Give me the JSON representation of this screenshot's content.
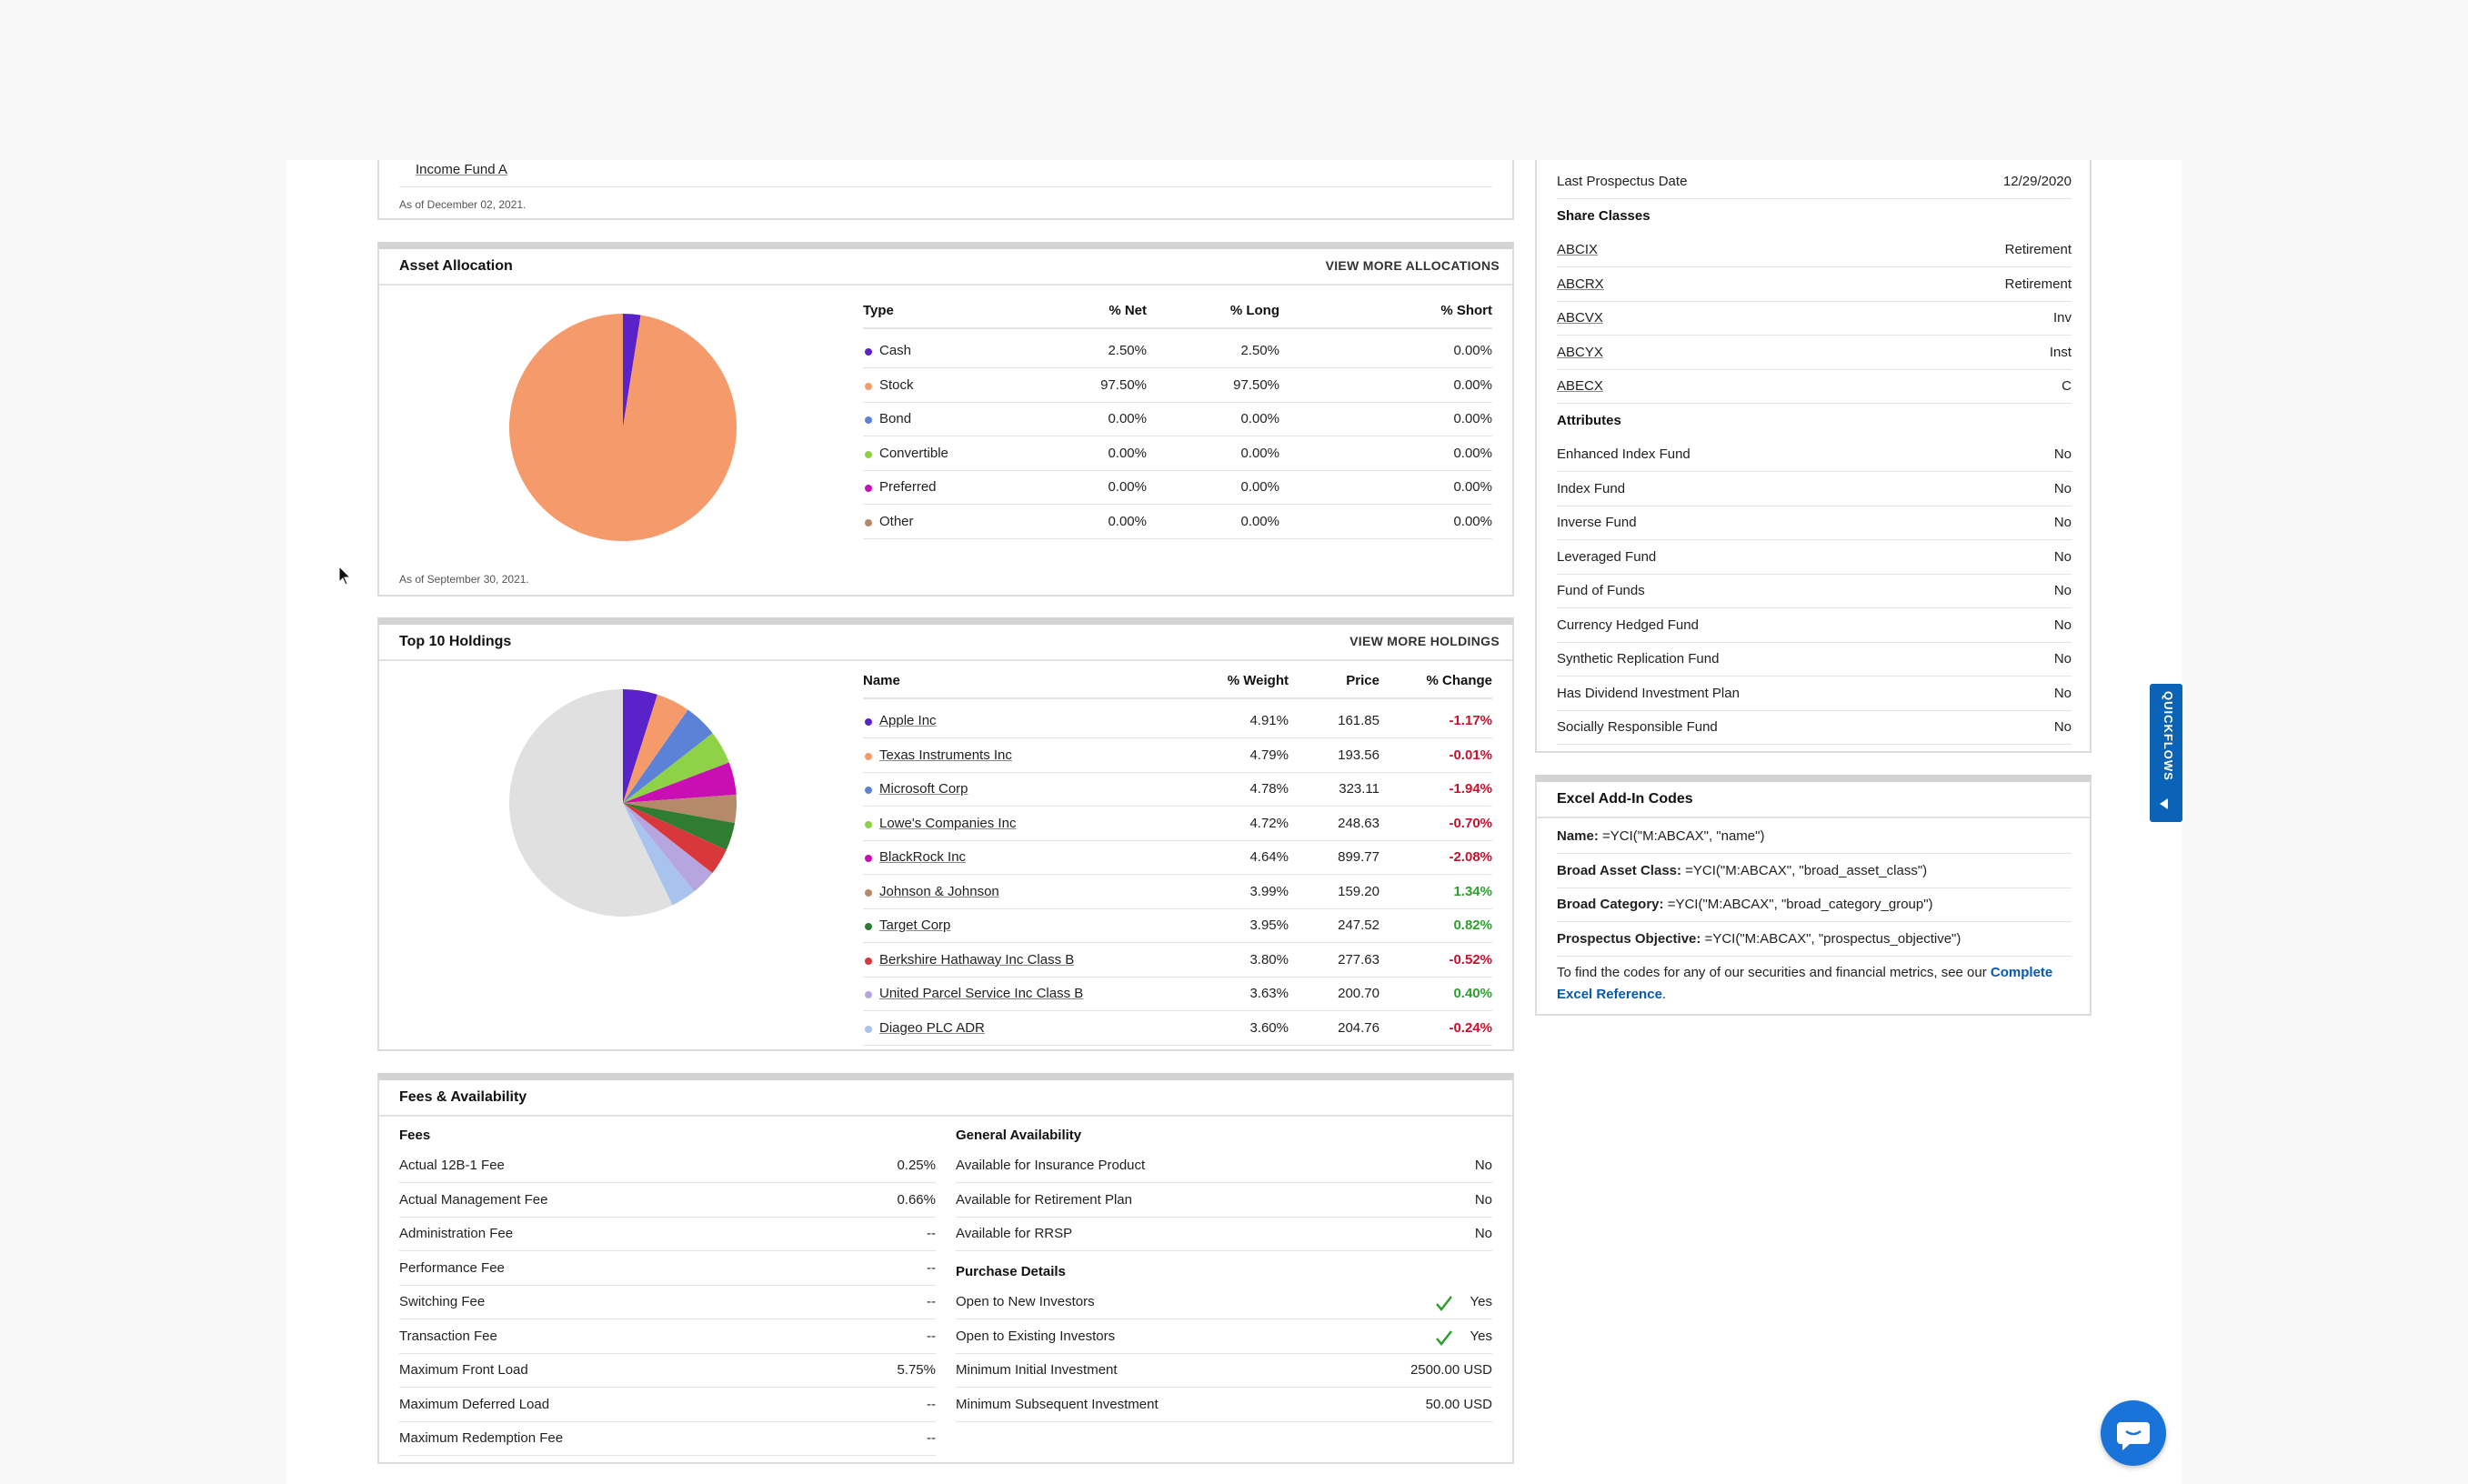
{
  "income_fund": {
    "name": "Income Fund A",
    "as_of": "As of December 02, 2021."
  },
  "asset_allocation": {
    "title": "Asset Allocation",
    "link": "VIEW MORE ALLOCATIONS",
    "as_of": "As of September 30, 2021.",
    "headers": [
      "Type",
      "% Net",
      "% Long",
      "% Short"
    ],
    "rows": [
      {
        "type": "Cash",
        "net": "2.50%",
        "long": "2.50%",
        "short": "0.00%",
        "color": "#5a22c9"
      },
      {
        "type": "Stock",
        "net": "97.50%",
        "long": "97.50%",
        "short": "0.00%",
        "color": "#f59a6a"
      },
      {
        "type": "Bond",
        "net": "0.00%",
        "long": "0.00%",
        "short": "0.00%",
        "color": "#5b82d6"
      },
      {
        "type": "Convertible",
        "net": "0.00%",
        "long": "0.00%",
        "short": "0.00%",
        "color": "#8fd147"
      },
      {
        "type": "Preferred",
        "net": "0.00%",
        "long": "0.00%",
        "short": "0.00%",
        "color": "#c90fb4"
      },
      {
        "type": "Other",
        "net": "0.00%",
        "long": "0.00%",
        "short": "0.00%",
        "color": "#b58a6a"
      }
    ],
    "pie": [
      {
        "label": "Cash",
        "value": 2.5,
        "color": "#5a22c9"
      },
      {
        "label": "Stock",
        "value": 97.5,
        "color": "#f59a6a"
      }
    ]
  },
  "top_holdings": {
    "title": "Top 10 Holdings",
    "link": "VIEW MORE HOLDINGS",
    "headers": [
      "Name",
      "% Weight",
      "Price",
      "% Change"
    ],
    "rows": [
      {
        "name": "Apple Inc",
        "weight": "4.91%",
        "price": "161.85",
        "change": "-1.17%",
        "dir": "neg",
        "color": "#5a22c9"
      },
      {
        "name": "Texas Instruments Inc",
        "weight": "4.79%",
        "price": "193.56",
        "change": "-0.01%",
        "dir": "neg",
        "color": "#f59a6a"
      },
      {
        "name": "Microsoft Corp",
        "weight": "4.78%",
        "price": "323.11",
        "change": "-1.94%",
        "dir": "neg",
        "color": "#5b82d6"
      },
      {
        "name": "Lowe's Companies Inc",
        "weight": "4.72%",
        "price": "248.63",
        "change": "-0.70%",
        "dir": "neg",
        "color": "#8fd147"
      },
      {
        "name": "BlackRock Inc",
        "weight": "4.64%",
        "price": "899.77",
        "change": "-2.08%",
        "dir": "neg",
        "color": "#c90fb4"
      },
      {
        "name": "Johnson & Johnson",
        "weight": "3.99%",
        "price": "159.20",
        "change": "1.34%",
        "dir": "pos",
        "color": "#b58a6a"
      },
      {
        "name": "Target Corp",
        "weight": "3.95%",
        "price": "247.52",
        "change": "0.82%",
        "dir": "pos",
        "color": "#2f7d32"
      },
      {
        "name": "Berkshire Hathaway Inc Class B",
        "weight": "3.80%",
        "price": "277.63",
        "change": "-0.52%",
        "dir": "neg",
        "color": "#d9383a"
      },
      {
        "name": "United Parcel Service Inc Class B",
        "weight": "3.63%",
        "price": "200.70",
        "change": "0.40%",
        "dir": "pos",
        "color": "#b7a5e0"
      },
      {
        "name": "Diageo PLC ADR",
        "weight": "3.60%",
        "price": "204.76",
        "change": "-0.24%",
        "dir": "neg",
        "color": "#a9c3ef"
      }
    ],
    "other_color": "#e0e0e0"
  },
  "fees": {
    "title": "Fees & Availability",
    "fees_heading": "Fees",
    "fees_rows": [
      {
        "label": "Actual 12B-1 Fee",
        "value": "0.25%"
      },
      {
        "label": "Actual Management Fee",
        "value": "0.66%"
      },
      {
        "label": "Administration Fee",
        "value": "--"
      },
      {
        "label": "Performance Fee",
        "value": "--"
      },
      {
        "label": "Switching Fee",
        "value": "--"
      },
      {
        "label": "Transaction Fee",
        "value": "--"
      },
      {
        "label": "Maximum Front Load",
        "value": "5.75%"
      },
      {
        "label": "Maximum Deferred Load",
        "value": "--"
      },
      {
        "label": "Maximum Redemption Fee",
        "value": "--"
      }
    ],
    "availability_heading": "General Availability",
    "availability_rows": [
      {
        "label": "Available for Insurance Product",
        "value": "No"
      },
      {
        "label": "Available for Retirement Plan",
        "value": "No"
      },
      {
        "label": "Available for RRSP",
        "value": "No"
      }
    ],
    "purchase_heading": "Purchase Details",
    "purchase_rows": [
      {
        "label": "Open to New Investors",
        "value": "Yes",
        "check": true
      },
      {
        "label": "Open to Existing Investors",
        "value": "Yes",
        "check": true
      },
      {
        "label": "Minimum Initial Investment",
        "value": "2500.00 USD",
        "check": false
      },
      {
        "label": "Minimum Subsequent Investment",
        "value": "50.00 USD",
        "check": false
      }
    ]
  },
  "profile": {
    "last_prospectus": {
      "label": "Last Prospectus Date",
      "value": "12/29/2020"
    },
    "share_classes_heading": "Share Classes",
    "share_classes": [
      {
        "label": "ABCIX",
        "value": "Retirement"
      },
      {
        "label": "ABCRX",
        "value": "Retirement"
      },
      {
        "label": "ABCVX",
        "value": "Inv"
      },
      {
        "label": "ABCYX",
        "value": "Inst"
      },
      {
        "label": "ABECX",
        "value": "C"
      }
    ],
    "attributes_heading": "Attributes",
    "attributes": [
      {
        "label": "Enhanced Index Fund",
        "value": "No"
      },
      {
        "label": "Index Fund",
        "value": "No"
      },
      {
        "label": "Inverse Fund",
        "value": "No"
      },
      {
        "label": "Leveraged Fund",
        "value": "No"
      },
      {
        "label": "Fund of Funds",
        "value": "No"
      },
      {
        "label": "Currency Hedged Fund",
        "value": "No"
      },
      {
        "label": "Synthetic Replication Fund",
        "value": "No"
      },
      {
        "label": "Has Dividend Investment Plan",
        "value": "No"
      },
      {
        "label": "Socially Responsible Fund",
        "value": "No"
      }
    ]
  },
  "excel": {
    "title": "Excel Add-In Codes",
    "rows": [
      {
        "label": "Name:",
        "code": "=YCI(\"M:ABCAX\", \"name\")"
      },
      {
        "label": "Broad Asset Class:",
        "code": "=YCI(\"M:ABCAX\", \"broad_asset_class\")"
      },
      {
        "label": "Broad Category:",
        "code": "=YCI(\"M:ABCAX\", \"broad_category_group\")"
      },
      {
        "label": "Prospectus Objective:",
        "code": "=YCI(\"M:ABCAX\", \"prospectus_objective\")"
      }
    ],
    "footer_text": "To find the codes for any of our securities and financial metrics, see our",
    "footer_link_1": "Complete",
    "footer_link_2": "Excel Reference",
    "footer_end": "."
  },
  "quickflows": {
    "label": "QUICKFLOWS"
  },
  "icons": {
    "chat": "chat-icon",
    "check": "check-icon",
    "cursor": "cursor-icon"
  }
}
